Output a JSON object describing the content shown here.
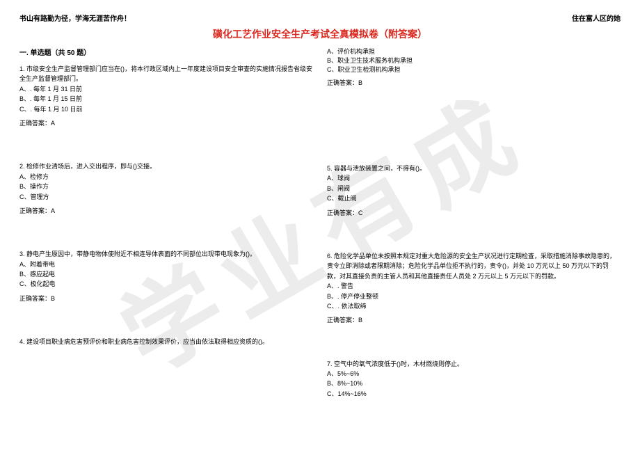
{
  "header": {
    "left": "书山有路勤为径，学海无涯苦作舟！",
    "right": "住在富人区的她"
  },
  "title": "磺化工艺作业安全生产考试全真模拟卷（附答案）",
  "section_title": "一. 单选题（共 50 题）",
  "watermark": "学业有成",
  "col1": {
    "q1": {
      "stem": "1. 市级安全生产监督管理部门应当在()，将本行政区域内上一年度建设项目安全审查的实施情况报告省级安全生产监督管理部门。",
      "optA": "A、. 每年 1 月 31 日前",
      "optB": "B、. 每年 1 月 15 日前",
      "optC": "C、. 每年 1 月 10 日前",
      "answer": "正确答案：A"
    },
    "q2": {
      "stem": "2. 检修作业清场后，进入交出程序，即与()交接。",
      "optA": "A、检修方",
      "optB": "B、操作方",
      "optC": "C、管理方",
      "answer": "正确答案：A"
    },
    "q3": {
      "stem": "3. 静电产生原因中，带静电物体使附近不相连导体表面的不同部位出现带电现象为()。",
      "optA": "A、附着带电",
      "optB": "B、感应起电",
      "optC": "C、极化起电",
      "answer": "正确答案：B"
    },
    "q4": {
      "stem": "4. 建设项目职业病危害预评价和职业病危害控制效果评价，应当由依法取得相应资质的()。"
    }
  },
  "col2": {
    "q4_cont": {
      "optA": "A、评价机构承担",
      "optB": "B、职业卫生技术服务机构承担",
      "optC": "C、职业卫生检测机构承担",
      "answer": "正确答案：B"
    },
    "q5": {
      "stem": "5. 容器与泄放装置之间，不得有()。",
      "optA": "A、球阀",
      "optB": "B、闸阀",
      "optC": "C、截止阀",
      "answer": "正确答案：C"
    },
    "q6": {
      "stem": "6. 危险化学品单位未按照本规定对重大危险源的安全生产状况进行定期检查，采取措施消除事故隐患的，责令立即消除或者限期消除；危险化学品单位拒不执行的，责令()，并处 10 万元以上 50 万元以下的罚款，对其直接负责的主管人员和其他直接责任人员处 2 万元以上 5 万元以下的罚款。",
      "optA": "A、. 警告",
      "optB": "B、. 停产停业整顿",
      "optC": "C、. 依法取缔",
      "answer": "正确答案：B"
    },
    "q7": {
      "stem": "7. 空气中的氧气浓度低于()时，木材燃烧则停止。",
      "optA": "A、5%~6%",
      "optB": "B、8%~10%",
      "optC": "C、14%~16%"
    }
  }
}
